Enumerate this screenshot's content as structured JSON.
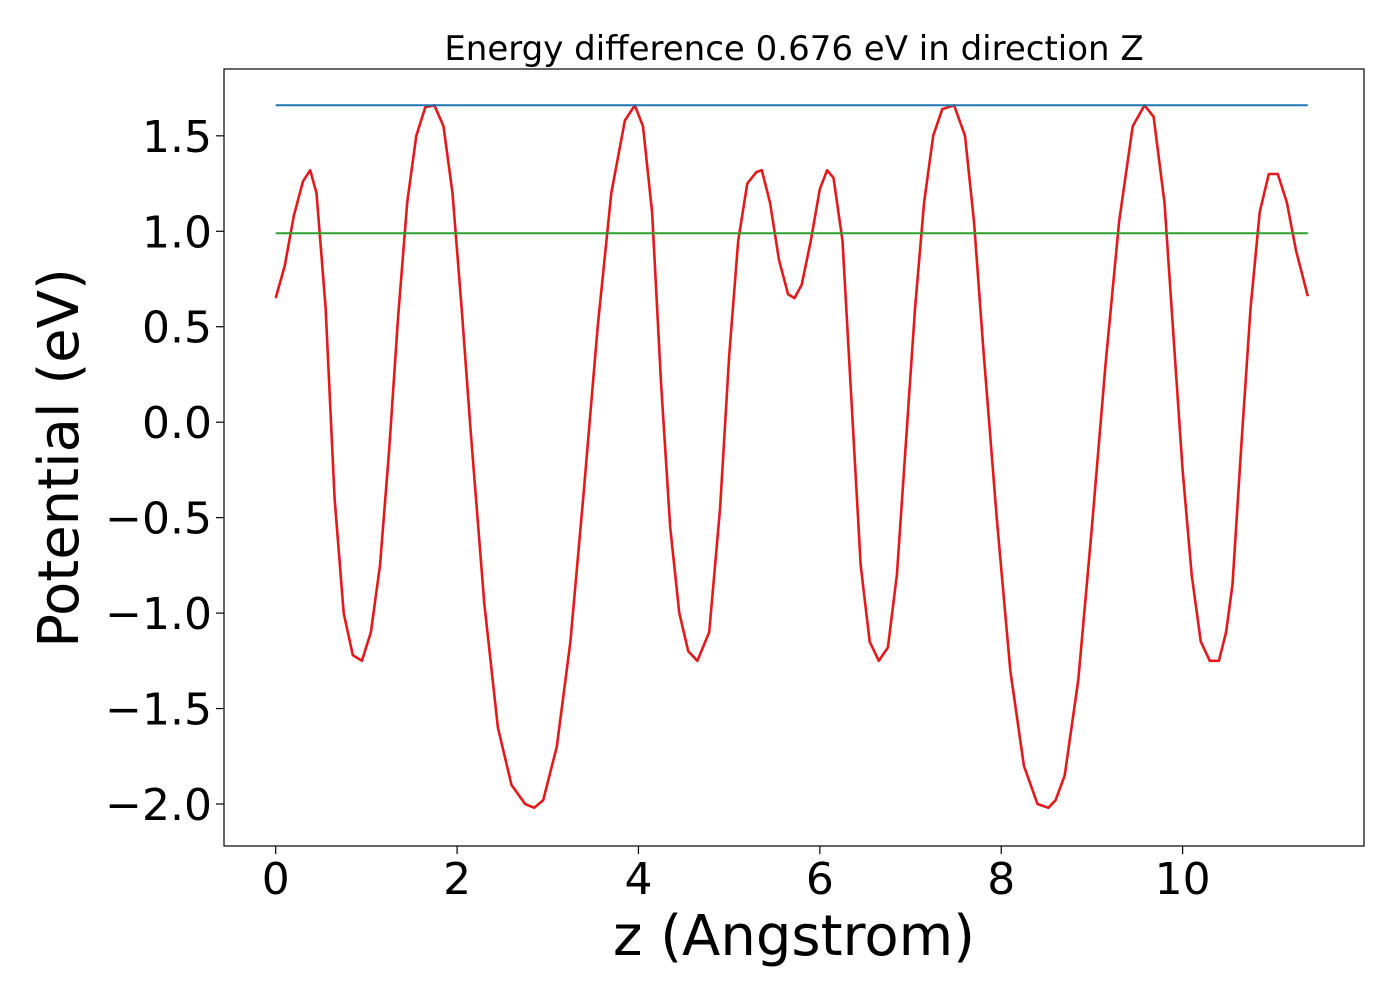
{
  "chart_data": {
    "type": "line",
    "title": "Energy difference 0.676 eV in direction Z",
    "xlabel": "z (Angstrom)",
    "ylabel": "Potential (eV)",
    "xlim": [
      -0.57,
      12.0
    ],
    "ylim": [
      -2.22,
      1.85
    ],
    "x_ticks": [
      0,
      2,
      4,
      6,
      8,
      10
    ],
    "y_ticks": [
      -2.0,
      -1.5,
      -1.0,
      -0.5,
      0.0,
      0.5,
      1.0,
      1.5
    ],
    "x_tick_labels": [
      "0",
      "2",
      "4",
      "6",
      "8",
      "10"
    ],
    "y_tick_labels": [
      "−2.0",
      "−1.5",
      "−1.0",
      "−0.5",
      "0.0",
      "0.5",
      "1.0",
      "1.5"
    ],
    "grid": false,
    "series": [
      {
        "color": "#e31a1c",
        "x": [
          0.0,
          0.1,
          0.2,
          0.3,
          0.38,
          0.45,
          0.55,
          0.65,
          0.75,
          0.85,
          0.95,
          1.05,
          1.15,
          1.25,
          1.35,
          1.45,
          1.55,
          1.65,
          1.75,
          1.85,
          1.95,
          2.05,
          2.15,
          2.3,
          2.45,
          2.6,
          2.75,
          2.85,
          2.95,
          3.1,
          3.25,
          3.4,
          3.55,
          3.7,
          3.85,
          3.96,
          4.05,
          4.15,
          4.25,
          4.35,
          4.45,
          4.55,
          4.65,
          4.78,
          4.9,
          5.0,
          5.1,
          5.2,
          5.3,
          5.36,
          5.45,
          5.55,
          5.65,
          5.72,
          5.8,
          5.9,
          6.0,
          6.08,
          6.15,
          6.25,
          6.35,
          6.45,
          6.55,
          6.65,
          6.75,
          6.85,
          6.95,
          7.05,
          7.15,
          7.25,
          7.35,
          7.48,
          7.6,
          7.7,
          7.8,
          7.95,
          8.1,
          8.25,
          8.4,
          8.52,
          8.6,
          8.7,
          8.85,
          9.0,
          9.15,
          9.3,
          9.45,
          9.58,
          9.68,
          9.8,
          9.9,
          10.0,
          10.1,
          10.2,
          10.3,
          10.4,
          10.48,
          10.55,
          10.65,
          10.75,
          10.85,
          10.95,
          11.05,
          11.15,
          11.25,
          11.38
        ],
        "y": [
          0.65,
          0.82,
          1.08,
          1.26,
          1.32,
          1.2,
          0.6,
          -0.4,
          -1.0,
          -1.22,
          -1.25,
          -1.1,
          -0.75,
          -0.15,
          0.55,
          1.15,
          1.5,
          1.65,
          1.66,
          1.55,
          1.2,
          0.6,
          -0.05,
          -0.95,
          -1.6,
          -1.9,
          -2.0,
          -2.02,
          -1.98,
          -1.7,
          -1.15,
          -0.35,
          0.5,
          1.2,
          1.58,
          1.66,
          1.55,
          1.1,
          0.2,
          -0.55,
          -1.0,
          -1.2,
          -1.25,
          -1.1,
          -0.45,
          0.35,
          0.95,
          1.25,
          1.31,
          1.32,
          1.15,
          0.85,
          0.67,
          0.65,
          0.72,
          0.95,
          1.22,
          1.32,
          1.28,
          0.95,
          0.1,
          -0.75,
          -1.15,
          -1.25,
          -1.18,
          -0.8,
          -0.1,
          0.6,
          1.15,
          1.5,
          1.64,
          1.66,
          1.5,
          1.05,
          0.4,
          -0.5,
          -1.3,
          -1.8,
          -2.0,
          -2.02,
          -1.98,
          -1.85,
          -1.35,
          -0.55,
          0.3,
          1.05,
          1.55,
          1.66,
          1.6,
          1.15,
          0.45,
          -0.25,
          -0.8,
          -1.15,
          -1.25,
          -1.25,
          -1.1,
          -0.85,
          -0.1,
          0.6,
          1.1,
          1.3,
          1.3,
          1.15,
          0.9,
          0.66
        ]
      },
      {
        "color": "#1f77b4",
        "x": [
          0.0,
          11.38
        ],
        "y": [
          1.66,
          1.66
        ]
      },
      {
        "color": "#2ca02c",
        "x": [
          0.0,
          11.38
        ],
        "y": [
          0.99,
          0.99
        ]
      }
    ]
  }
}
